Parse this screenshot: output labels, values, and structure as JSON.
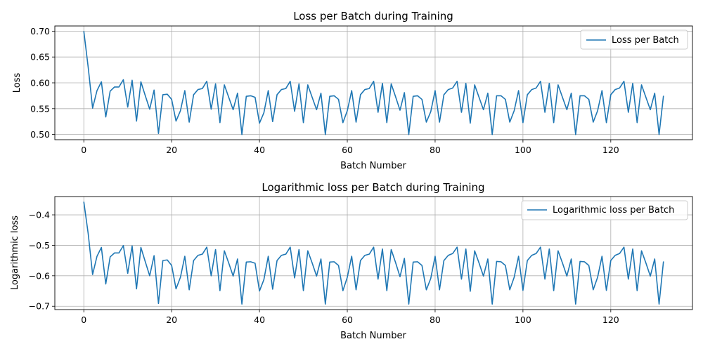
{
  "chart_data": [
    {
      "type": "line",
      "title": "Loss per Batch during Training",
      "xlabel": "Batch Number",
      "ylabel": "Loss",
      "xlim": [
        -6.6,
        138.6
      ],
      "ylim": [
        0.49,
        0.71
      ],
      "xticks": [
        0,
        20,
        40,
        60,
        80,
        100,
        120
      ],
      "yticks": [
        0.5,
        0.55,
        0.6,
        0.65,
        0.7
      ],
      "ytick_labels": [
        "0.50",
        "0.55",
        "0.60",
        "0.65",
        "0.70"
      ],
      "grid": true,
      "legend_position": "upper right",
      "series": [
        {
          "name": "Loss per Batch",
          "color": "#1f77b4",
          "x_start": 0,
          "values": [
            0.7,
            0.63,
            0.551,
            0.585,
            0.602,
            0.534,
            0.584,
            0.592,
            0.592,
            0.606,
            0.553,
            0.605,
            0.526,
            0.602,
            0.575,
            0.549,
            0.586,
            0.502,
            0.577,
            0.578,
            0.568,
            0.526,
            0.546,
            0.585,
            0.524,
            0.577,
            0.587,
            0.589,
            0.603,
            0.549,
            0.598,
            0.523,
            0.596,
            0.572,
            0.548,
            0.58,
            0.5,
            0.574,
            0.575,
            0.572,
            0.522,
            0.542,
            0.585,
            0.525,
            0.577,
            0.587,
            0.589,
            0.603,
            0.545,
            0.598,
            0.523,
            0.596,
            0.572,
            0.548,
            0.58,
            0.5,
            0.574,
            0.575,
            0.568,
            0.523,
            0.546,
            0.585,
            0.524,
            0.577,
            0.587,
            0.589,
            0.603,
            0.543,
            0.599,
            0.523,
            0.598,
            0.573,
            0.547,
            0.581,
            0.5,
            0.574,
            0.575,
            0.568,
            0.524,
            0.544,
            0.585,
            0.524,
            0.577,
            0.587,
            0.59,
            0.603,
            0.543,
            0.599,
            0.522,
            0.596,
            0.572,
            0.548,
            0.58,
            0.5,
            0.575,
            0.575,
            0.568,
            0.524,
            0.546,
            0.585,
            0.523,
            0.577,
            0.587,
            0.59,
            0.603,
            0.543,
            0.599,
            0.523,
            0.596,
            0.572,
            0.548,
            0.58,
            0.5,
            0.575,
            0.575,
            0.568,
            0.524,
            0.546,
            0.585,
            0.523,
            0.577,
            0.587,
            0.59,
            0.603,
            0.543,
            0.599,
            0.523,
            0.596,
            0.572,
            0.548,
            0.58,
            0.5,
            0.575
          ]
        }
      ]
    },
    {
      "type": "line",
      "title": "Logarithmic loss per Batch during Training",
      "xlabel": "Batch Number",
      "ylabel": "Logarithmic loss",
      "xlim": [
        -6.6,
        138.6
      ],
      "ylim": [
        -0.711,
        -0.34
      ],
      "xticks": [
        0,
        20,
        40,
        60,
        80,
        100,
        120
      ],
      "yticks": [
        -0.7,
        -0.6,
        -0.5,
        -0.4
      ],
      "ytick_labels": [
        "−0.7",
        "−0.6",
        "−0.5",
        "−0.4"
      ],
      "grid": true,
      "legend_position": "upper right",
      "series": [
        {
          "name": "Logarithmic loss per Batch",
          "color": "#1f77b4",
          "x_start": 0,
          "values": [
            -0.357,
            -0.462,
            -0.596,
            -0.536,
            -0.507,
            -0.627,
            -0.538,
            -0.525,
            -0.525,
            -0.501,
            -0.592,
            -0.502,
            -0.643,
            -0.507,
            -0.554,
            -0.6,
            -0.534,
            -0.691,
            -0.55,
            -0.548,
            -0.566,
            -0.643,
            -0.605,
            -0.536,
            -0.646,
            -0.55,
            -0.533,
            -0.529,
            -0.506,
            -0.6,
            -0.514,
            -0.649,
            -0.518,
            -0.558,
            -0.601,
            -0.545,
            -0.693,
            -0.555,
            -0.554,
            -0.559,
            -0.65,
            -0.613,
            -0.536,
            -0.644,
            -0.55,
            -0.533,
            -0.529,
            -0.506,
            -0.607,
            -0.514,
            -0.649,
            -0.518,
            -0.558,
            -0.601,
            -0.545,
            -0.693,
            -0.555,
            -0.554,
            -0.566,
            -0.649,
            -0.605,
            -0.536,
            -0.646,
            -0.55,
            -0.533,
            -0.529,
            -0.506,
            -0.611,
            -0.512,
            -0.649,
            -0.514,
            -0.557,
            -0.603,
            -0.543,
            -0.693,
            -0.555,
            -0.554,
            -0.566,
            -0.646,
            -0.609,
            -0.536,
            -0.646,
            -0.55,
            -0.533,
            -0.527,
            -0.506,
            -0.611,
            -0.512,
            -0.651,
            -0.518,
            -0.558,
            -0.601,
            -0.545,
            -0.693,
            -0.553,
            -0.554,
            -0.566,
            -0.646,
            -0.605,
            -0.536,
            -0.648,
            -0.55,
            -0.533,
            -0.527,
            -0.506,
            -0.611,
            -0.512,
            -0.649,
            -0.518,
            -0.558,
            -0.601,
            -0.545,
            -0.693,
            -0.553,
            -0.554,
            -0.566,
            -0.646,
            -0.605,
            -0.536,
            -0.648,
            -0.55,
            -0.533,
            -0.527,
            -0.506,
            -0.611,
            -0.512,
            -0.649,
            -0.518,
            -0.558,
            -0.601,
            -0.545,
            -0.693,
            -0.553
          ]
        }
      ]
    }
  ]
}
